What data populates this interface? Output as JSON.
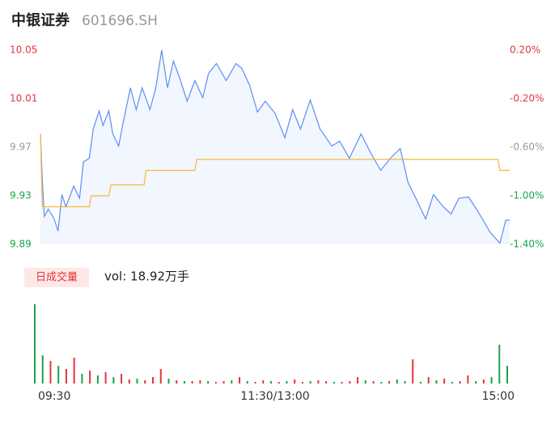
{
  "chart_data": [
    {
      "type": "line",
      "title": "中银证券",
      "subtitle": "601696.SH",
      "xlim": [
        0,
        240
      ],
      "xticks": [
        {
          "value": 0,
          "label": "09:30"
        },
        {
          "value": 120,
          "label": "11:30/13:00"
        },
        {
          "value": 240,
          "label": "15:00"
        }
      ],
      "ylim": [
        9.89,
        10.05
      ],
      "yticks": [
        10.05,
        10.01,
        9.97,
        9.93,
        9.89
      ],
      "y2lim": [
        -1.4,
        0.2
      ],
      "y2ticks": [
        {
          "value": 0.2,
          "label": "0.20%"
        },
        {
          "value": -0.2,
          "label": "-0.20%"
        },
        {
          "value": -0.6,
          "label": "-0.60%"
        },
        {
          "value": -1.0,
          "label": "-1.00%"
        },
        {
          "value": -1.4,
          "label": "-1.40%"
        }
      ],
      "tick_colors": [
        "#e5343a",
        "#e5343a",
        "#999999",
        "#1aa34a",
        "#1aa34a"
      ],
      "series": [
        {
          "color": "#5b8ff0",
          "fill": "#f2f6fe",
          "x": [
            0,
            1,
            2,
            4,
            7,
            9,
            11,
            13,
            17,
            20,
            22,
            25,
            27,
            30,
            32,
            35,
            37,
            40,
            42,
            46,
            49,
            52,
            56,
            59,
            62,
            65,
            68,
            71,
            75,
            79,
            83,
            86,
            90,
            95,
            100,
            103,
            107,
            111,
            115,
            120,
            125,
            129,
            133,
            138,
            143,
            149,
            153,
            158,
            164,
            169,
            174,
            179,
            184,
            188,
            192,
            197,
            201,
            206,
            210,
            214,
            219,
            223,
            226,
            230,
            235,
            238,
            240
          ],
          "values": [
            9.981,
            9.941,
            9.913,
            9.919,
            9.911,
            9.901,
            9.931,
            9.921,
            9.938,
            9.928,
            9.958,
            9.961,
            9.985,
            10.0,
            9.988,
            10.0,
            9.981,
            9.971,
            9.988,
            10.019,
            10.001,
            10.019,
            10.001,
            10.019,
            10.05,
            10.019,
            10.041,
            10.028,
            10.008,
            10.025,
            10.011,
            10.031,
            10.039,
            10.025,
            10.039,
            10.035,
            10.021,
            9.999,
            10.008,
            9.998,
            9.978,
            10.001,
            9.985,
            10.009,
            9.985,
            9.971,
            9.975,
            9.961,
            9.981,
            9.965,
            9.951,
            9.961,
            9.969,
            9.941,
            9.928,
            9.911,
            9.931,
            9.921,
            9.915,
            9.928,
            9.929,
            9.919,
            9.911,
            9.9,
            9.891,
            9.91,
            9.91
          ]
        },
        {
          "color": "#f5b73c",
          "x": [
            0,
            1,
            25,
            26,
            35,
            36,
            53,
            54,
            79,
            80,
            234,
            235,
            240
          ],
          "values": [
            9.981,
            9.921,
            9.921,
            9.93,
            9.93,
            9.939,
            9.939,
            9.951,
            9.951,
            9.96,
            9.96,
            9.951,
            9.951
          ]
        }
      ]
    },
    {
      "type": "bar",
      "title": "日成交量",
      "subtitle": "vol: 18.92万手",
      "xlim": [
        0,
        240
      ],
      "ylim": [
        0,
        10000
      ],
      "x": [
        0,
        4,
        8,
        12,
        16,
        20,
        24,
        28,
        32,
        36,
        40,
        44,
        48,
        52,
        56,
        60,
        64,
        68,
        72,
        76,
        80,
        84,
        88,
        92,
        96,
        100,
        104,
        108,
        112,
        116,
        120,
        124,
        128,
        132,
        136,
        140,
        144,
        148,
        152,
        156,
        160,
        164,
        168,
        172,
        176,
        180,
        184,
        188,
        192,
        196,
        200,
        204,
        208,
        212,
        216,
        220,
        224,
        228,
        232,
        236,
        240
      ],
      "values": [
        9800,
        3500,
        2800,
        2200,
        1800,
        3200,
        1200,
        1600,
        1000,
        1400,
        800,
        1200,
        500,
        600,
        400,
        800,
        1800,
        600,
        400,
        300,
        300,
        400,
        300,
        200,
        300,
        400,
        800,
        300,
        200,
        400,
        300,
        200,
        300,
        500,
        200,
        300,
        400,
        300,
        200,
        200,
        300,
        800,
        400,
        300,
        200,
        300,
        500,
        300,
        3000,
        200,
        800,
        400,
        600,
        200,
        300,
        1000,
        300,
        500,
        800,
        4800,
        2200
      ],
      "colors": [
        "#1aa34a",
        "#1aa34a",
        "#e5343a",
        "#1aa34a",
        "#e5343a",
        "#e5343a",
        "#1aa34a",
        "#e5343a",
        "#1aa34a",
        "#e5343a",
        "#1aa34a",
        "#e5343a",
        "#e5343a",
        "#1aa34a",
        "#e5343a",
        "#e5343a",
        "#e5343a",
        "#1aa34a",
        "#e5343a",
        "#1aa34a",
        "#e5343a",
        "#e5343a",
        "#1aa34a",
        "#e5343a",
        "#e5343a",
        "#1aa34a",
        "#e5343a",
        "#1aa34a",
        "#e5343a",
        "#e5343a",
        "#1aa34a",
        "#e5343a",
        "#1aa34a",
        "#e5343a",
        "#e5343a",
        "#1aa34a",
        "#e5343a",
        "#e5343a",
        "#1aa34a",
        "#e5343a",
        "#e5343a",
        "#e5343a",
        "#1aa34a",
        "#e5343a",
        "#1aa34a",
        "#e5343a",
        "#1aa34a",
        "#1aa34a",
        "#e5343a",
        "#1aa34a",
        "#e5343a",
        "#1aa34a",
        "#e5343a",
        "#1aa34a",
        "#e5343a",
        "#e5343a",
        "#1aa34a",
        "#e5343a",
        "#1aa34a",
        "#1aa34a",
        "#1aa34a"
      ]
    }
  ]
}
